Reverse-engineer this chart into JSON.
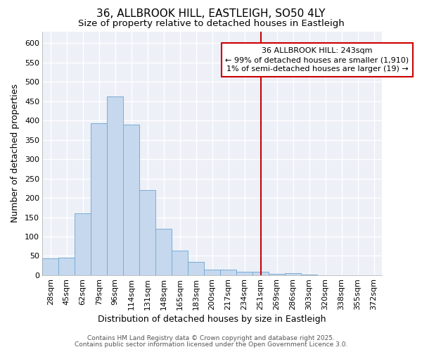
{
  "title": "36, ALLBROOK HILL, EASTLEIGH, SO50 4LY",
  "subtitle": "Size of property relative to detached houses in Eastleigh",
  "xlabel": "Distribution of detached houses by size in Eastleigh",
  "ylabel": "Number of detached properties",
  "categories": [
    "28sqm",
    "45sqm",
    "62sqm",
    "79sqm",
    "96sqm",
    "114sqm",
    "131sqm",
    "148sqm",
    "165sqm",
    "183sqm",
    "200sqm",
    "217sqm",
    "234sqm",
    "251sqm",
    "269sqm",
    "286sqm",
    "303sqm",
    "320sqm",
    "338sqm",
    "355sqm",
    "372sqm"
  ],
  "values": [
    44,
    46,
    160,
    393,
    463,
    390,
    220,
    120,
    63,
    35,
    14,
    14,
    9,
    8,
    4,
    5,
    1,
    0,
    0,
    0,
    0
  ],
  "bar_color": "#c5d8ee",
  "bar_edge_color": "#7aadd4",
  "plot_bg_color": "#edf0f7",
  "fig_bg_color": "#ffffff",
  "vline_x_index": 13,
  "vline_color": "#cc0000",
  "annotation_title": "36 ALLBROOK HILL: 243sqm",
  "annotation_line1": "← 99% of detached houses are smaller (1,910)",
  "annotation_line2": "1% of semi-detached houses are larger (19) →",
  "annotation_box_color": "#cc0000",
  "ylim": [
    0,
    630
  ],
  "yticks": [
    0,
    50,
    100,
    150,
    200,
    250,
    300,
    350,
    400,
    450,
    500,
    550,
    600
  ],
  "footer1": "Contains HM Land Registry data © Crown copyright and database right 2025.",
  "footer2": "Contains public sector information licensed under the Open Government Licence 3.0.",
  "title_fontsize": 11,
  "subtitle_fontsize": 9.5,
  "tick_fontsize": 8,
  "label_fontsize": 9,
  "annotation_fontsize": 8,
  "footer_fontsize": 6.5
}
